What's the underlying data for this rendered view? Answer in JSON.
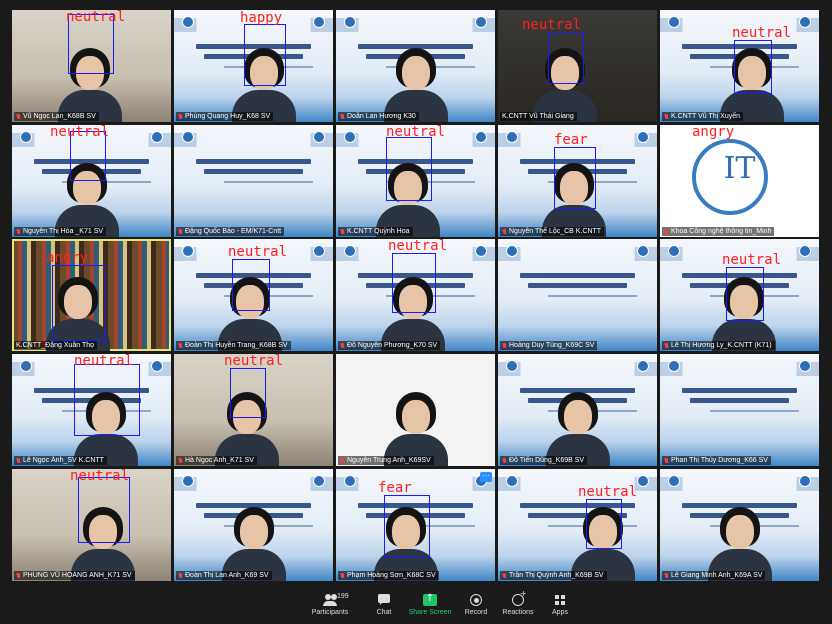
{
  "participants_count": "199",
  "toolbar": {
    "participants": "Participants",
    "chat": "Chat",
    "share_screen": "Share Screen",
    "record": "Record",
    "reactions": "Reactions",
    "apps": "Apps"
  },
  "tiles": [
    {
      "name": "Vũ Ngọc Lan_K68B SV",
      "emotion": "neutral",
      "bg": "room",
      "muted": true,
      "person": true
    },
    {
      "name": "Phùng Quang Huy_K68 SV",
      "emotion": "happy",
      "bg": "slide",
      "muted": true,
      "person": true
    },
    {
      "name": "Doãn Lan Hương K30",
      "emotion": "",
      "bg": "slide",
      "muted": true,
      "person": true
    },
    {
      "name": "K.CNTT Vũ Thái Giang",
      "emotion": "neutral",
      "bg": "dark",
      "muted": false,
      "person": true
    },
    {
      "name": "K.CNTT Vũ Thị Xuyến",
      "emotion": "neutral",
      "bg": "slide",
      "muted": true,
      "person": true
    },
    {
      "name": "Nguyễn Thị Hòa _K71 SV",
      "emotion": "neutral",
      "bg": "slide",
      "muted": true,
      "person": true
    },
    {
      "name": "Đặng Quốc Bảo - EM/K71-Cntt",
      "emotion": "",
      "bg": "slide",
      "muted": true,
      "person": false
    },
    {
      "name": "K.CNTT Quỳnh Hoa",
      "emotion": "neutral",
      "bg": "slide",
      "muted": true,
      "person": true
    },
    {
      "name": "Nguyễn Thế Lộc_CB K.CNTT",
      "emotion": "fear",
      "bg": "slide",
      "muted": true,
      "person": true
    },
    {
      "name": "Khoa Công nghệ thông tin_Minh",
      "emotion": "angry",
      "bg": "it",
      "muted": true,
      "person": false
    },
    {
      "name": "K.CNTT_Đặng Xuân Thọ",
      "emotion": "angry",
      "bg": "books",
      "muted": false,
      "person": true
    },
    {
      "name": "Đoàn Thị Huyền Trang_K68B SV",
      "emotion": "neutral",
      "bg": "slide",
      "muted": true,
      "person": true
    },
    {
      "name": "Đỗ Nguyễn Phương_K70 SV",
      "emotion": "neutral",
      "bg": "slide",
      "muted": true,
      "person": true
    },
    {
      "name": "Hoàng Duy Tùng_K69C SV",
      "emotion": "",
      "bg": "slide",
      "muted": true,
      "person": false
    },
    {
      "name": "Lê Thị Hương Ly_K.CNTT (K71)",
      "emotion": "neutral",
      "bg": "slide",
      "muted": true,
      "person": true
    },
    {
      "name": "Lê Ngọc Ánh_SV K.CNTT",
      "emotion": "neutral",
      "bg": "slide",
      "muted": true,
      "person": true
    },
    {
      "name": "Hà Ngọc Anh_K71 SV",
      "emotion": "neutral",
      "bg": "room",
      "muted": true,
      "person": true
    },
    {
      "name": "Nguyễn Trung Anh_K69SV",
      "emotion": "",
      "bg": "white",
      "muted": true,
      "person": true
    },
    {
      "name": "Đỗ Tiến Dũng_K69B SV",
      "emotion": "",
      "bg": "slide",
      "muted": true,
      "person": true
    },
    {
      "name": "Phan Thị Thùy Dương_K66 SV",
      "emotion": "",
      "bg": "slide",
      "muted": true,
      "person": false
    },
    {
      "name": "PHÙNG VŨ HOÀNG ANH_K71 SV",
      "emotion": "neutral",
      "bg": "room",
      "muted": true,
      "person": true
    },
    {
      "name": "Đoàn Thị Lan Anh_K69 SV",
      "emotion": "",
      "bg": "slide",
      "muted": true,
      "person": true
    },
    {
      "name": "Phạm Hoàng Sơn_K68C SV",
      "emotion": "fear",
      "bg": "slide",
      "muted": true,
      "person": true,
      "more": true
    },
    {
      "name": "Trần Thị Quỳnh Anh_K69B SV",
      "emotion": "neutral",
      "bg": "slide",
      "muted": true,
      "person": true
    },
    {
      "name": "Lê Giang Minh Anh_K69A SV",
      "emotion": "",
      "bg": "slide",
      "muted": true,
      "person": true
    }
  ],
  "it_logo_text": "IT",
  "more_badge": "···"
}
